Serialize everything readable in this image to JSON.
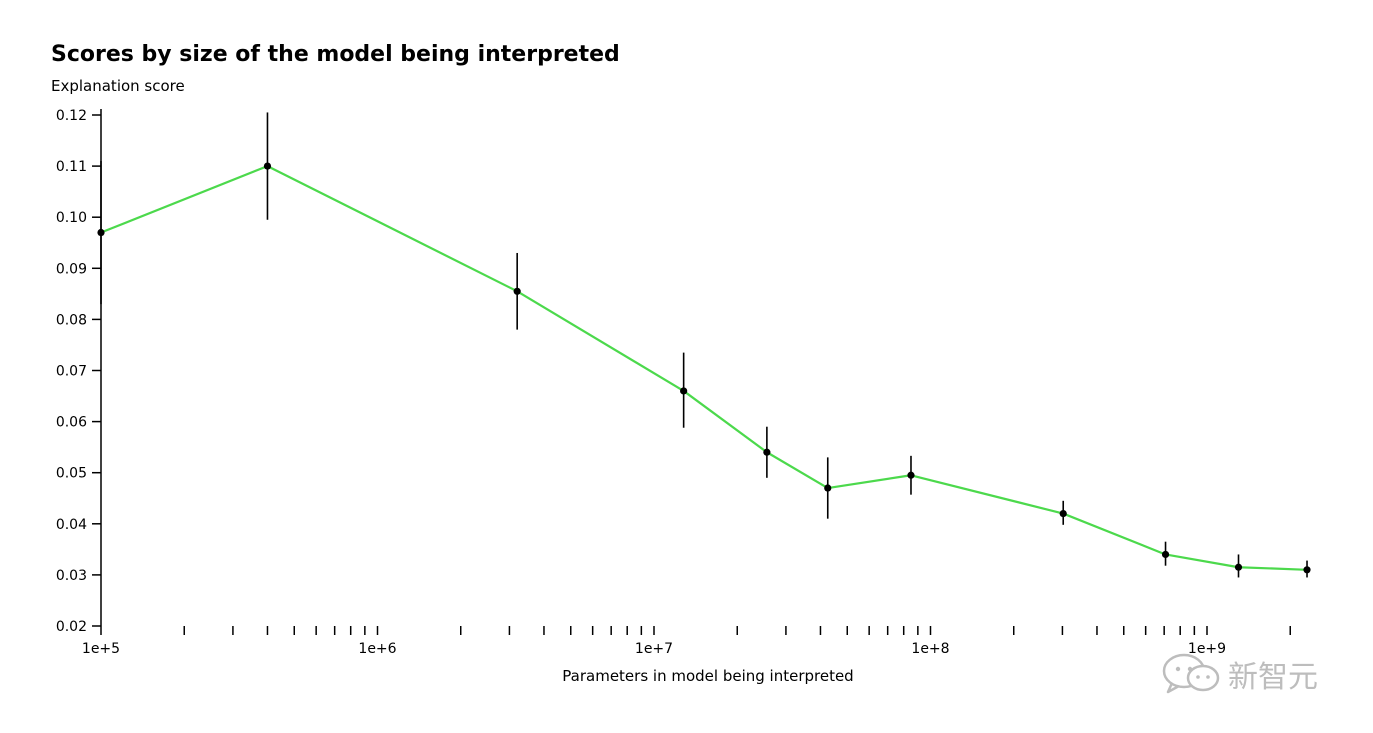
{
  "chart_data": {
    "type": "line",
    "title": "Scores by size of the model being interpreted",
    "ylabel": "Explanation score",
    "xlabel": "Parameters in model being interpreted",
    "xscale": "log",
    "xlim": [
      100000,
      2500000000
    ],
    "ylim": [
      0.02,
      0.12
    ],
    "yticks": [
      "0.02",
      "0.03",
      "0.04",
      "0.05",
      "0.06",
      "0.07",
      "0.08",
      "0.09",
      "0.10",
      "0.11",
      "0.12"
    ],
    "xticks": [
      "1e+5",
      "1e+6",
      "1e+7",
      "1e+8",
      "1e+9"
    ],
    "grid": false,
    "line_color": "#4cd94c",
    "series": [
      {
        "points": [
          {
            "x": 100000,
            "y": 0.097,
            "err_low": 0.083,
            "err_high": 0.111
          },
          {
            "x": 400000,
            "y": 0.11,
            "err_low": 0.0995,
            "err_high": 0.1205
          },
          {
            "x": 3200000,
            "y": 0.0855,
            "err_low": 0.078,
            "err_high": 0.093
          },
          {
            "x": 12800000,
            "y": 0.066,
            "err_low": 0.0588,
            "err_high": 0.0735
          },
          {
            "x": 25600000,
            "y": 0.054,
            "err_low": 0.049,
            "err_high": 0.059
          },
          {
            "x": 42500000,
            "y": 0.047,
            "err_low": 0.041,
            "err_high": 0.053
          },
          {
            "x": 85000000,
            "y": 0.0495,
            "err_low": 0.0457,
            "err_high": 0.0533
          },
          {
            "x": 302000000,
            "y": 0.042,
            "err_low": 0.0398,
            "err_high": 0.0445
          },
          {
            "x": 708000000,
            "y": 0.034,
            "err_low": 0.0318,
            "err_high": 0.0365
          },
          {
            "x": 1300000000,
            "y": 0.0315,
            "err_low": 0.0295,
            "err_high": 0.034
          },
          {
            "x": 2300000000,
            "y": 0.031,
            "err_low": 0.0295,
            "err_high": 0.0328
          }
        ]
      }
    ]
  },
  "watermark": {
    "text": "新智元",
    "icon": "wechat-icon"
  }
}
